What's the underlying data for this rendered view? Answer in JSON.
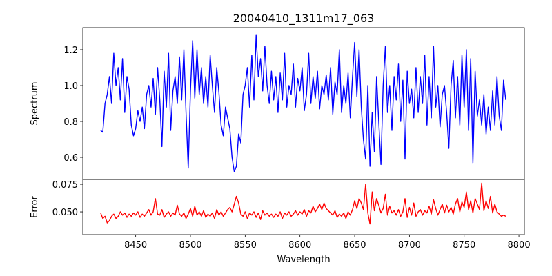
{
  "chart_data": {
    "type": "line",
    "title": "20040410_1311m17_063",
    "xlabel": "Wavelength",
    "xlim": [
      8401.7,
      8805
    ],
    "xticks": [
      8450,
      8500,
      8550,
      8600,
      8650,
      8700,
      8750,
      8800
    ],
    "xtick_labels": [
      "8450",
      "8500",
      "8550",
      "8600",
      "8650",
      "8700",
      "8750",
      "8800"
    ],
    "x_start": 8418,
    "x_step": 2,
    "panels": [
      {
        "name": "Spectrum",
        "ylabel": "Spectrum",
        "color": "#0000ff",
        "ylim": [
          0.477,
          1.323
        ],
        "yticks": [
          0.6,
          0.8,
          1.0,
          1.2
        ],
        "ytick_labels": [
          "0.6",
          "0.8",
          "1.0",
          "1.2"
        ],
        "values": [
          0.75,
          0.74,
          0.9,
          0.95,
          1.05,
          0.9,
          1.18,
          1.0,
          1.1,
          0.92,
          1.15,
          0.85,
          1.05,
          0.98,
          0.78,
          0.72,
          0.76,
          0.86,
          0.8,
          0.88,
          0.76,
          0.95,
          1.0,
          0.88,
          1.04,
          0.84,
          1.1,
          0.92,
          0.66,
          1.08,
          0.88,
          1.18,
          0.75,
          0.97,
          1.05,
          0.9,
          1.16,
          0.92,
          1.2,
          0.85,
          0.54,
          0.97,
          1.25,
          0.93,
          1.2,
          0.95,
          1.1,
          0.9,
          1.05,
          0.88,
          1.17,
          1.0,
          0.85,
          1.1,
          0.96,
          0.78,
          0.72,
          0.88,
          0.82,
          0.76,
          0.6,
          0.52,
          0.55,
          0.73,
          0.68,
          0.95,
          1.0,
          1.1,
          0.88,
          1.17,
          0.92,
          1.28,
          1.05,
          1.15,
          0.97,
          1.22,
          1.0,
          0.9,
          1.08,
          0.92,
          1.05,
          0.85,
          1.07,
          0.92,
          1.18,
          0.88,
          1.0,
          0.95,
          1.12,
          0.88,
          1.04,
          0.97,
          1.1,
          0.86,
          0.95,
          1.18,
          0.9,
          1.05,
          0.93,
          1.08,
          0.87,
          1.0,
          0.95,
          1.06,
          0.92,
          1.1,
          0.84,
          1.02,
          0.95,
          1.2,
          0.85,
          1.0,
          0.9,
          1.07,
          0.82,
          1.05,
          1.24,
          0.94,
          1.2,
          0.88,
          0.7,
          0.59,
          1.0,
          0.55,
          0.85,
          0.63,
          1.05,
          0.8,
          0.56,
          1.0,
          1.22,
          0.85,
          1.0,
          0.75,
          1.05,
          0.92,
          1.12,
          0.8,
          1.03,
          0.59,
          1.08,
          0.9,
          0.98,
          0.82,
          1.1,
          0.85,
          1.05,
          0.9,
          1.17,
          0.78,
          1.05,
          0.82,
          1.22,
          0.88,
          1.0,
          0.77,
          0.95,
          1.0,
          0.85,
          0.65,
          1.0,
          1.14,
          0.82,
          1.05,
          0.78,
          1.17,
          0.88,
          1.2,
          0.75,
          1.15,
          0.57,
          1.08,
          0.83,
          0.92,
          0.78,
          0.95,
          0.73,
          0.88,
          0.75,
          0.97,
          0.78,
          1.05,
          0.83,
          0.75,
          1.03,
          0.92
        ]
      },
      {
        "name": "Error",
        "ylabel": "Error",
        "color": "#ff0000",
        "ylim": [
          0.0294,
          0.0794
        ],
        "yticks": [
          0.05,
          0.075
        ],
        "ytick_labels": [
          "0.050",
          "0.075"
        ],
        "values": [
          0.049,
          0.044,
          0.046,
          0.04,
          0.042,
          0.046,
          0.048,
          0.044,
          0.046,
          0.05,
          0.047,
          0.049,
          0.045,
          0.048,
          0.046,
          0.049,
          0.047,
          0.05,
          0.045,
          0.048,
          0.046,
          0.049,
          0.052,
          0.047,
          0.05,
          0.062,
          0.048,
          0.047,
          0.052,
          0.045,
          0.048,
          0.05,
          0.046,
          0.049,
          0.047,
          0.056,
          0.048,
          0.046,
          0.049,
          0.044,
          0.048,
          0.053,
          0.046,
          0.055,
          0.047,
          0.05,
          0.046,
          0.051,
          0.045,
          0.048,
          0.046,
          0.049,
          0.044,
          0.052,
          0.047,
          0.05,
          0.046,
          0.049,
          0.052,
          0.054,
          0.05,
          0.057,
          0.064,
          0.058,
          0.048,
          0.046,
          0.05,
          0.044,
          0.049,
          0.047,
          0.05,
          0.045,
          0.049,
          0.043,
          0.051,
          0.047,
          0.049,
          0.046,
          0.048,
          0.045,
          0.048,
          0.046,
          0.05,
          0.044,
          0.049,
          0.047,
          0.05,
          0.046,
          0.048,
          0.051,
          0.047,
          0.05,
          0.048,
          0.052,
          0.046,
          0.051,
          0.049,
          0.055,
          0.05,
          0.053,
          0.057,
          0.052,
          0.058,
          0.053,
          0.051,
          0.049,
          0.047,
          0.051,
          0.045,
          0.048,
          0.046,
          0.049,
          0.044,
          0.05,
          0.047,
          0.052,
          0.06,
          0.053,
          0.062,
          0.058,
          0.052,
          0.075,
          0.049,
          0.039,
          0.068,
          0.051,
          0.062,
          0.056,
          0.049,
          0.053,
          0.066,
          0.047,
          0.055,
          0.049,
          0.051,
          0.047,
          0.052,
          0.046,
          0.05,
          0.062,
          0.045,
          0.054,
          0.047,
          0.058,
          0.046,
          0.05,
          0.052,
          0.047,
          0.051,
          0.049,
          0.055,
          0.048,
          0.061,
          0.053,
          0.047,
          0.052,
          0.057,
          0.049,
          0.056,
          0.05,
          0.054,
          0.048,
          0.057,
          0.062,
          0.05,
          0.059,
          0.054,
          0.068,
          0.052,
          0.06,
          0.049,
          0.062,
          0.057,
          0.052,
          0.076,
          0.051,
          0.06,
          0.053,
          0.064,
          0.049,
          0.057,
          0.05,
          0.048,
          0.046,
          0.047,
          0.046
        ]
      }
    ]
  }
}
